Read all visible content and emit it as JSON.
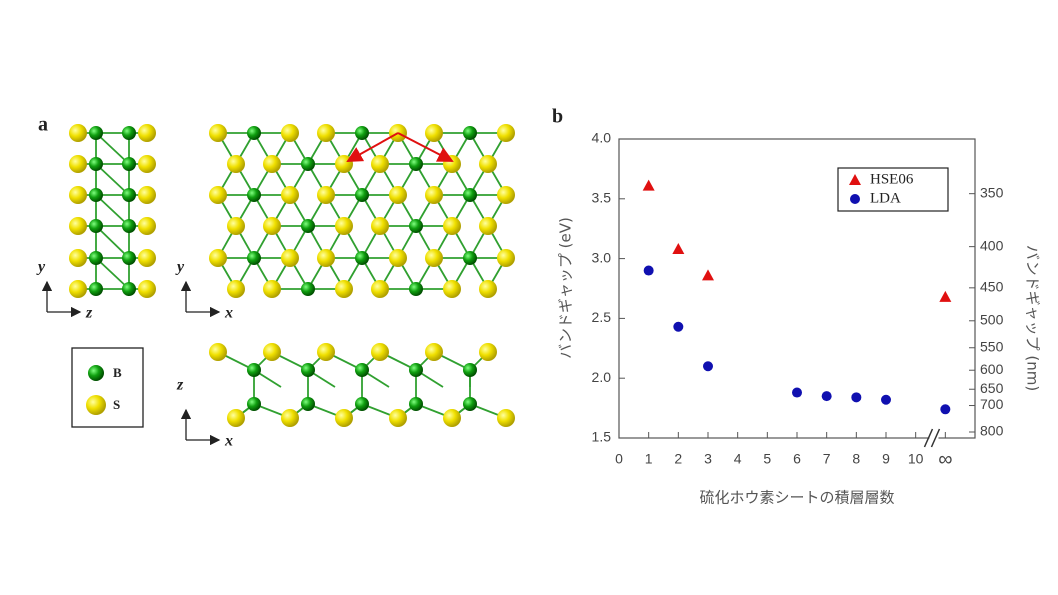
{
  "panel_a": {
    "label": "a",
    "axis_y": "y",
    "axis_z": "z",
    "axis_x": "x",
    "legend": [
      "B",
      "S"
    ]
  },
  "chart_data": {
    "type": "scatter",
    "label": "b",
    "xlabel": "硫化ホウ素シートの積層層数",
    "ylabel": "バンドギャップ (eV)",
    "y2label": "バンドギャップ (nm)",
    "xlim": [
      0,
      12
    ],
    "xticks": [
      0,
      1,
      2,
      3,
      4,
      5,
      6,
      7,
      8,
      9,
      10,
      {
        "value": 11,
        "label": "∞"
      }
    ],
    "ylim": [
      1.5,
      4.0
    ],
    "yticks": [
      1.5,
      2.0,
      2.5,
      3.0,
      3.5,
      4.0
    ],
    "y2lim": [
      826.7,
      310
    ],
    "y2scale": "reciprocal",
    "y2ticks": [
      350,
      400,
      450,
      500,
      550,
      600,
      650,
      700,
      800
    ],
    "legend": "upper right",
    "series": [
      {
        "name": "HSE06",
        "color": "#e01010",
        "marker": "triangle",
        "x": [
          1,
          2,
          3,
          11
        ],
        "values": [
          3.61,
          3.08,
          2.86,
          2.68
        ]
      },
      {
        "name": "LDA",
        "color": "#1010b0",
        "marker": "circle",
        "x": [
          1,
          2,
          3,
          6,
          7,
          8,
          9,
          11
        ],
        "values": [
          2.9,
          2.43,
          2.1,
          1.88,
          1.85,
          1.84,
          1.82,
          1.74
        ]
      }
    ]
  }
}
